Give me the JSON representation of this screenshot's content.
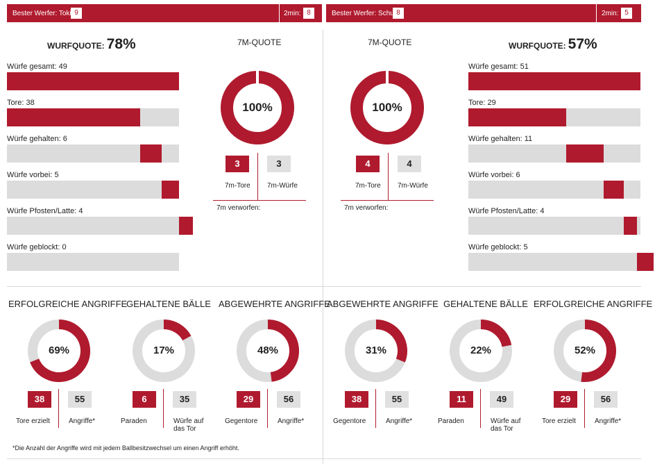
{
  "colors": {
    "accent": "#b01a2e",
    "track": "#dcdcdc"
  },
  "teams": [
    {
      "best_label": "Bester Werfer: Tokic",
      "best_value": "9",
      "twomin_label": "2min:",
      "twomin_value": "8",
      "quote_label": "WURFQUOTE:",
      "quote_value": "78%",
      "seven_title": "7M-QUOTE",
      "seven_pct": "100%",
      "seven_tore": "3",
      "seven_wuerfe": "3",
      "seven_tore_label": "7m-Tore",
      "seven_wuerfe_label": "7m-Würfe",
      "seven_verworfen_label": "7m verworfen:"
    },
    {
      "best_label": "Bester Werfer: Schuh",
      "best_value": "8",
      "twomin_label": "2min:",
      "twomin_value": "5",
      "quote_label": "WURFQUOTE:",
      "quote_value": "57%",
      "seven_title": "7M-QUOTE",
      "seven_pct": "100%",
      "seven_tore": "4",
      "seven_wuerfe": "4",
      "seven_tore_label": "7m-Tore",
      "seven_wuerfe_label": "7m-Würfe",
      "seven_verworfen_label": "7m verworfen:"
    }
  ],
  "chart_data": [
    {
      "type": "bar",
      "orientation": "horizontal-stacked",
      "team": 0,
      "bars": [
        {
          "label": "Würfe gesamt: 49",
          "value": 49
        },
        {
          "label": "Tore: 38",
          "value": 38
        },
        {
          "label": "Würfe gehalten: 6",
          "value": 6
        },
        {
          "label": "Würfe vorbei: 5",
          "value": 5
        },
        {
          "label": "Würfe Pfosten/Latte: 4",
          "value": 4
        },
        {
          "label": "Würfe geblockt: 0",
          "value": 0
        }
      ],
      "xlim": [
        0,
        49
      ]
    },
    {
      "type": "bar",
      "orientation": "horizontal-stacked",
      "team": 1,
      "bars": [
        {
          "label": "Würfe gesamt: 51",
          "value": 51
        },
        {
          "label": "Tore: 29",
          "value": 29
        },
        {
          "label": "Würfe gehalten: 11",
          "value": 11
        },
        {
          "label": "Würfe vorbei: 6",
          "value": 6
        },
        {
          "label": "Würfe Pfosten/Latte: 4",
          "value": 4
        },
        {
          "label": "Würfe geblockt: 5",
          "value": 5
        }
      ],
      "xlim": [
        0,
        51
      ]
    },
    {
      "type": "pie",
      "style": "donut",
      "title": "7M-QUOTE",
      "value_label": "100%",
      "fraction": 1.0
    },
    {
      "type": "pie",
      "style": "donut",
      "title": "7M-QUOTE",
      "value_label": "100%",
      "fraction": 1.0
    },
    {
      "type": "pie",
      "style": "donut",
      "title": "ERFOLGREICHE ANGRIFFE",
      "value_label": "69%",
      "fraction": 0.69,
      "a_value": "38",
      "b_value": "55",
      "a_label": "Tore erzielt",
      "b_label": "Angriffe*"
    },
    {
      "type": "pie",
      "style": "donut",
      "title": "GEHALTENE BÄLLE",
      "value_label": "17%",
      "fraction": 0.17,
      "a_value": "6",
      "b_value": "35",
      "a_label": "Paraden",
      "b_label": "Würfe auf das Tor"
    },
    {
      "type": "pie",
      "style": "donut",
      "title": "ABGEWEHRTE ANGRIFFE",
      "value_label": "48%",
      "fraction": 0.48,
      "a_value": "29",
      "b_value": "56",
      "a_label": "Gegentore",
      "b_label": "Angriffe*"
    },
    {
      "type": "pie",
      "style": "donut",
      "title": "ABGEWEHRTE ANGRIFFE",
      "value_label": "31%",
      "fraction": 0.31,
      "a_value": "38",
      "b_value": "55",
      "a_label": "Gegentore",
      "b_label": "Angriffe*"
    },
    {
      "type": "pie",
      "style": "donut",
      "title": "GEHALTENE BÄLLE",
      "value_label": "22%",
      "fraction": 0.22,
      "a_value": "11",
      "b_value": "49",
      "a_label": "Paraden",
      "b_label": "Würfe auf das Tor"
    },
    {
      "type": "pie",
      "style": "donut",
      "title": "ERFOLGREICHE ANGRIFFE",
      "value_label": "52%",
      "fraction": 0.52,
      "a_value": "29",
      "b_value": "56",
      "a_label": "Tore erzielt",
      "b_label": "Angriffe*"
    }
  ],
  "footnote": "*Die Anzahl der Angriffe wird mit jedem Ballbesitzwechsel um einen Angriff erhöht."
}
